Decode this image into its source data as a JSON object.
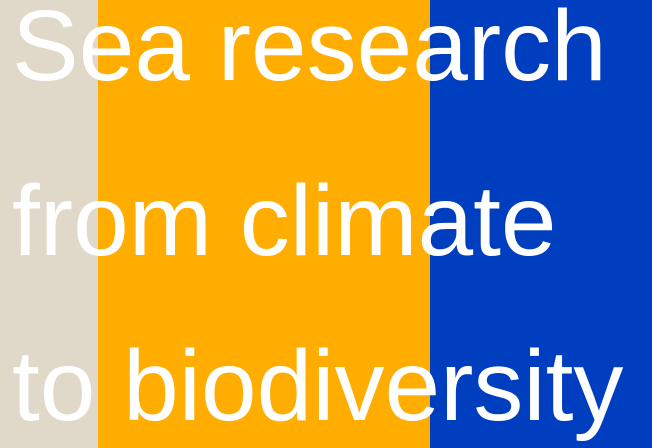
{
  "headline": {
    "lines": [
      "Sea research",
      "from climate",
      "to biodiversity"
    ]
  }
}
